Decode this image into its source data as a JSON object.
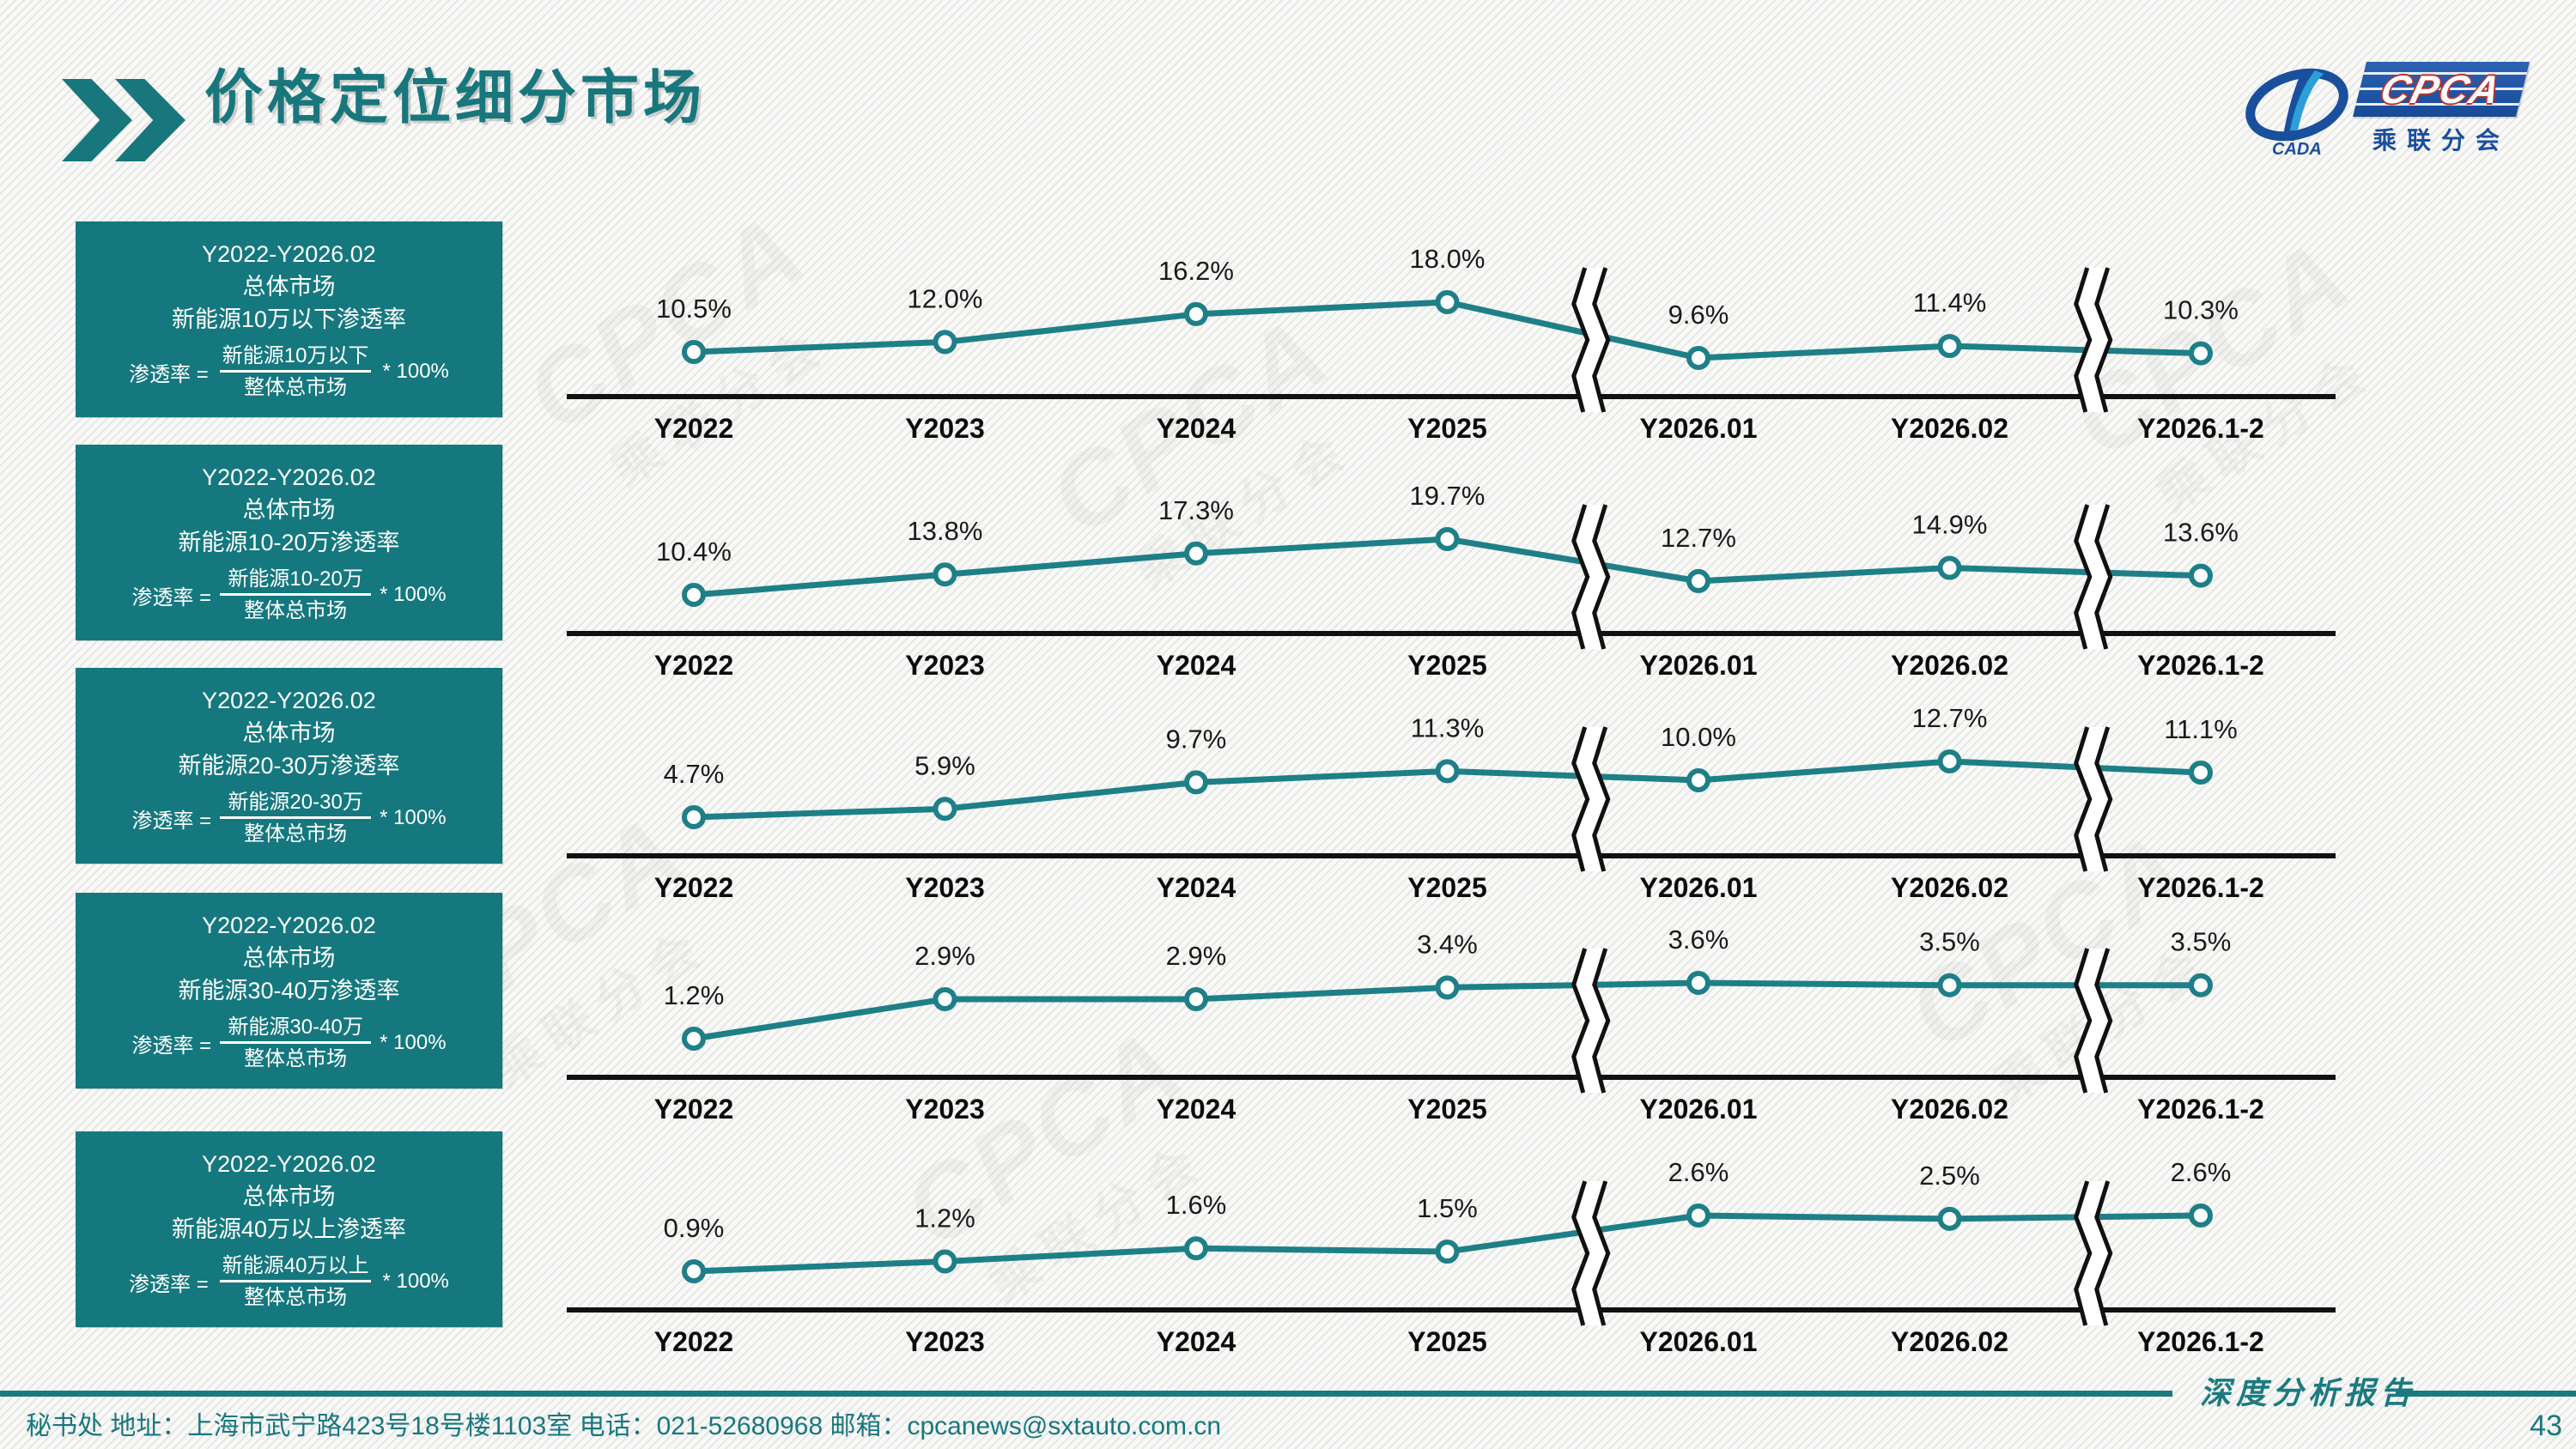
{
  "page": {
    "title": "价格定位细分市场",
    "page_number": "43"
  },
  "logo": {
    "cpca": "CPCA",
    "cada": "CADA",
    "subtitle": "乘联分会"
  },
  "colors": {
    "teal": "#15787E",
    "line": "#1E7F87",
    "axis": "#111111",
    "label": "#1a1a1a",
    "blue": "#1a4f9e",
    "red": "#c03028"
  },
  "panels": [
    {
      "period": "Y2022-Y2026.02",
      "market": "总体市场",
      "metric": "新能源10万以下渗透率",
      "formula_lhs": "渗透率 =",
      "numerator": "新能源10万以下",
      "denominator": "整体总市场",
      "multiplier": "* 100%"
    },
    {
      "period": "Y2022-Y2026.02",
      "market": "总体市场",
      "metric": "新能源10-20万渗透率",
      "formula_lhs": "渗透率 =",
      "numerator": "新能源10-20万",
      "denominator": "整体总市场",
      "multiplier": "* 100%"
    },
    {
      "period": "Y2022-Y2026.02",
      "market": "总体市场",
      "metric": "新能源20-30万渗透率",
      "formula_lhs": "渗透率 =",
      "numerator": "新能源20-30万",
      "denominator": "整体总市场",
      "multiplier": "* 100%"
    },
    {
      "period": "Y2022-Y2026.02",
      "market": "总体市场",
      "metric": "新能源30-40万渗透率",
      "formula_lhs": "渗透率 =",
      "numerator": "新能源30-40万",
      "denominator": "整体总市场",
      "multiplier": "* 100%"
    },
    {
      "period": "Y2022-Y2026.02",
      "market": "总体市场",
      "metric": "新能源40万以上渗透率",
      "formula_lhs": "渗透率 =",
      "numerator": "新能源40万以上",
      "denominator": "整体总市场",
      "multiplier": "* 100%"
    }
  ],
  "chart_data": [
    {
      "type": "line",
      "name": "新能源10万以下渗透率",
      "categories": [
        "Y2022",
        "Y2023",
        "Y2024",
        "Y2025",
        "Y2026.01",
        "Y2026.02",
        "Y2026.1-2"
      ],
      "values": [
        10.5,
        12.0,
        16.2,
        18.0,
        9.6,
        11.4,
        10.3
      ],
      "labels": [
        "10.5%",
        "12.0%",
        "16.2%",
        "18.0%",
        "9.6%",
        "11.4%",
        "10.3%"
      ],
      "axis_breaks_after": [
        3,
        5
      ],
      "ylim": [
        0,
        22
      ],
      "grid": false,
      "legend": "none"
    },
    {
      "type": "line",
      "name": "新能源10-20万渗透率",
      "categories": [
        "Y2022",
        "Y2023",
        "Y2024",
        "Y2025",
        "Y2026.01",
        "Y2026.02",
        "Y2026.1-2"
      ],
      "values": [
        10.4,
        13.8,
        17.3,
        19.7,
        12.7,
        14.9,
        13.6
      ],
      "labels": [
        "10.4%",
        "13.8%",
        "17.3%",
        "19.7%",
        "12.7%",
        "14.9%",
        "13.6%"
      ],
      "axis_breaks_after": [
        3,
        5
      ],
      "ylim": [
        0,
        24
      ],
      "grid": false,
      "legend": "none"
    },
    {
      "type": "line",
      "name": "新能源20-30万渗透率",
      "categories": [
        "Y2022",
        "Y2023",
        "Y2024",
        "Y2025",
        "Y2026.01",
        "Y2026.02",
        "Y2026.1-2"
      ],
      "values": [
        4.7,
        5.9,
        9.7,
        11.3,
        10.0,
        12.7,
        11.1
      ],
      "labels": [
        "4.7%",
        "5.9%",
        "9.7%",
        "11.3%",
        "10.0%",
        "12.7%",
        "11.1%"
      ],
      "axis_breaks_after": [
        3,
        5
      ],
      "ylim": [
        0,
        16
      ],
      "grid": false,
      "legend": "none"
    },
    {
      "type": "line",
      "name": "新能源30-40万渗透率",
      "categories": [
        "Y2022",
        "Y2023",
        "Y2024",
        "Y2025",
        "Y2026.01",
        "Y2026.02",
        "Y2026.1-2"
      ],
      "values": [
        1.2,
        2.9,
        2.9,
        3.4,
        3.6,
        3.5,
        3.5
      ],
      "labels": [
        "1.2%",
        "2.9%",
        "2.9%",
        "3.4%",
        "3.6%",
        "3.5%",
        "3.5%"
      ],
      "axis_breaks_after": [
        3,
        5
      ],
      "ylim": [
        0,
        5
      ],
      "grid": false,
      "legend": "none"
    },
    {
      "type": "line",
      "name": "新能源40万以上渗透率",
      "categories": [
        "Y2022",
        "Y2023",
        "Y2024",
        "Y2025",
        "Y2026.01",
        "Y2026.02",
        "Y2026.1-2"
      ],
      "values": [
        0.9,
        1.2,
        1.6,
        1.5,
        2.6,
        2.5,
        2.6
      ],
      "labels": [
        "0.9%",
        "1.2%",
        "1.6%",
        "1.5%",
        "2.6%",
        "2.5%",
        "2.6%"
      ],
      "axis_breaks_after": [
        3,
        5
      ],
      "ylim": [
        0,
        4
      ],
      "grid": false,
      "legend": "none"
    }
  ],
  "footer": {
    "address": "秘书处   地址：上海市武宁路423号18号楼1103室  电话：021-52680968   邮箱：cpcanews@sxtauto.com.cn",
    "report_label": "深度分析报告"
  },
  "watermark": {
    "big": "CPCA",
    "small": "乘联分会"
  }
}
